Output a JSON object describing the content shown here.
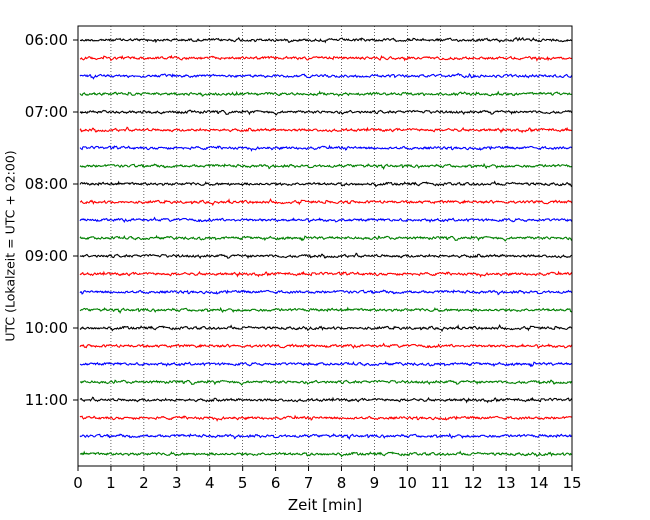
{
  "chart_data": {
    "type": "line",
    "title": "",
    "xlabel": "Zeit  [min]",
    "ylabel": "UTC (Lokalzeit = UTC + 02:00)",
    "xlim": [
      0,
      15
    ],
    "x_ticks": [
      "0",
      "1",
      "2",
      "3",
      "4",
      "5",
      "6",
      "7",
      "8",
      "9",
      "10",
      "11",
      "12",
      "13",
      "14",
      "15"
    ],
    "y_ticks": [
      "06:00",
      "07:00",
      "08:00",
      "09:00",
      "10:00",
      "11:00"
    ],
    "trace_interval_min": 15,
    "start_time": "06:00",
    "traces": [
      {
        "time": "06:00",
        "color": "#000000"
      },
      {
        "time": "06:15",
        "color": "#ff0000"
      },
      {
        "time": "06:30",
        "color": "#0000ff"
      },
      {
        "time": "06:45",
        "color": "#008000"
      },
      {
        "time": "07:00",
        "color": "#000000"
      },
      {
        "time": "07:15",
        "color": "#ff0000"
      },
      {
        "time": "07:30",
        "color": "#0000ff"
      },
      {
        "time": "07:45",
        "color": "#008000"
      },
      {
        "time": "08:00",
        "color": "#000000"
      },
      {
        "time": "08:15",
        "color": "#ff0000"
      },
      {
        "time": "08:30",
        "color": "#0000ff"
      },
      {
        "time": "08:45",
        "color": "#008000"
      },
      {
        "time": "09:00",
        "color": "#000000"
      },
      {
        "time": "09:15",
        "color": "#ff0000"
      },
      {
        "time": "09:30",
        "color": "#0000ff"
      },
      {
        "time": "09:45",
        "color": "#008000"
      },
      {
        "time": "10:00",
        "color": "#000000"
      },
      {
        "time": "10:15",
        "color": "#ff0000"
      },
      {
        "time": "10:30",
        "color": "#0000ff"
      },
      {
        "time": "10:45",
        "color": "#008000"
      },
      {
        "time": "11:00",
        "color": "#000000"
      },
      {
        "time": "11:15",
        "color": "#ff0000"
      },
      {
        "time": "11:30",
        "color": "#0000ff"
      },
      {
        "time": "11:45",
        "color": "#008000"
      }
    ],
    "grid": "vertical dotted at each minute",
    "legend": "none"
  }
}
